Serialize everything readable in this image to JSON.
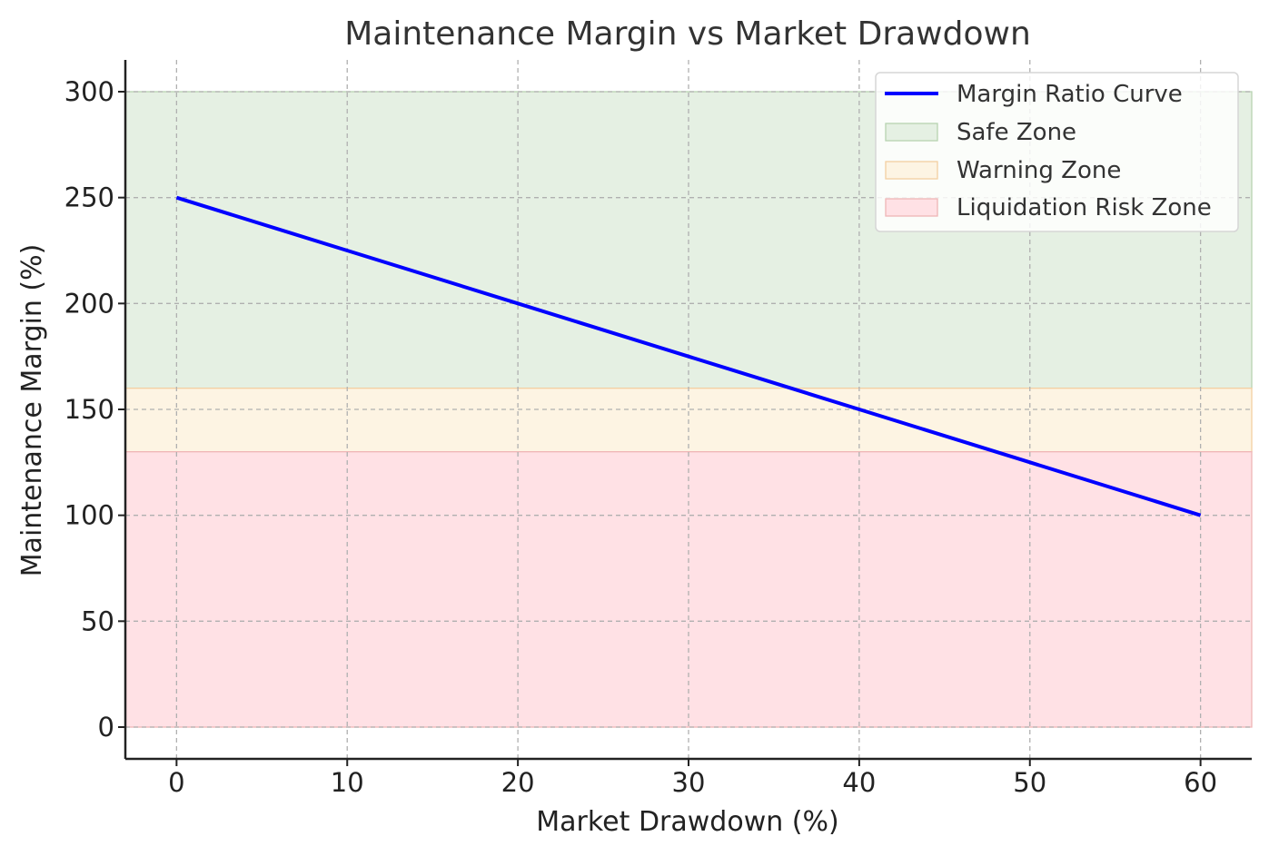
{
  "chart_data": {
    "type": "line",
    "title": "Maintenance Margin vs Market Drawdown",
    "xlabel": "Market Drawdown (%)",
    "ylabel": "Maintenance Margin (%)",
    "xlim": [
      -3,
      63
    ],
    "ylim": [
      -15,
      315
    ],
    "xticks": [
      0,
      10,
      20,
      30,
      40,
      50,
      60
    ],
    "yticks": [
      0,
      50,
      100,
      150,
      200,
      250,
      300
    ],
    "xtick_labels": [
      "0",
      "10",
      "20",
      "30",
      "40",
      "50",
      "60"
    ],
    "ytick_labels": [
      "0",
      "50",
      "100",
      "150",
      "200",
      "250",
      "300"
    ],
    "grid": true,
    "legend_position": "top-right",
    "series": [
      {
        "name": "Margin Ratio Curve",
        "color": "#0000ff",
        "x": [
          0,
          10,
          20,
          30,
          40,
          50,
          60
        ],
        "y": [
          250,
          225,
          200,
          175,
          150,
          125,
          100
        ]
      }
    ],
    "zones": [
      {
        "name": "Safe Zone",
        "y0": 160,
        "y1": 300,
        "color": "#e5f0e3",
        "edge": "#b7d3b1"
      },
      {
        "name": "Warning Zone",
        "y0": 130,
        "y1": 160,
        "color": "#fdf4e3",
        "edge": "#f3cfa2"
      },
      {
        "name": "Liquidation Risk Zone",
        "y0": 0,
        "y1": 130,
        "color": "#ffe1e5",
        "edge": "#efb6b6"
      }
    ],
    "legend_entries": [
      "Margin Ratio Curve",
      "Safe Zone",
      "Warning Zone",
      "Liquidation Risk Zone"
    ]
  }
}
